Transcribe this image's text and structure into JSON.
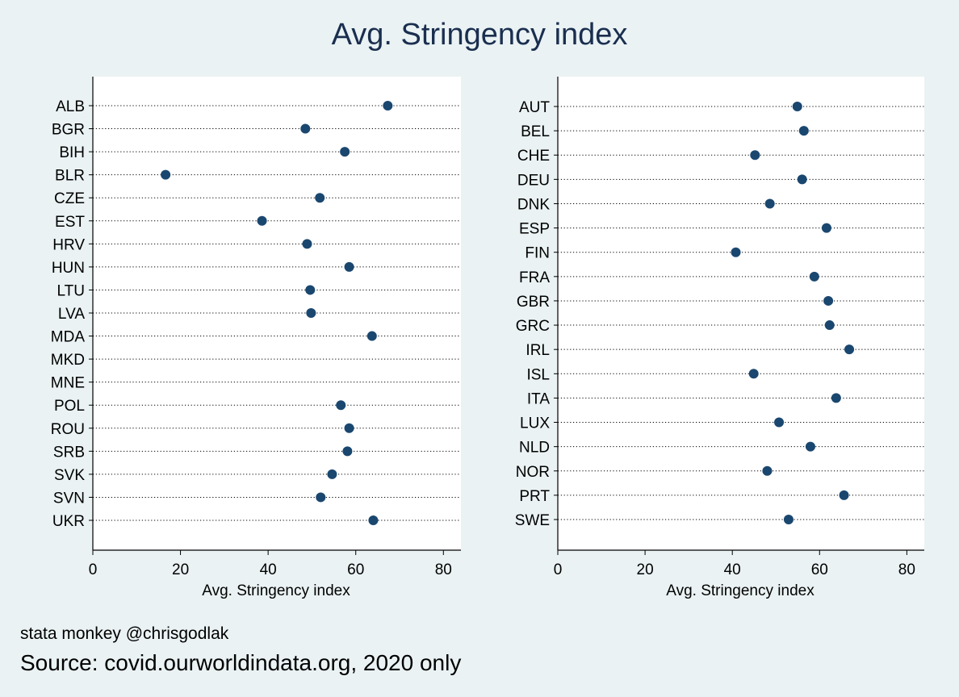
{
  "title": "Avg. Stringency index",
  "credit": "stata monkey @chrisgodlak",
  "source": "Source: covid.ourworldindata.org, 2020 only",
  "colors": {
    "background": "#eaf2f3",
    "plot_bg": "#ffffff",
    "marker": "#1a476f",
    "title": "#1a2e4f"
  },
  "chart_data": [
    {
      "type": "scatter",
      "orientation": "horizontal-dot",
      "xlabel": "Avg. Stringency index",
      "xlim": [
        0,
        84
      ],
      "xticks": [
        0,
        20,
        40,
        60,
        80
      ],
      "grid": "dotted horizontal lines per category",
      "categories": [
        "ALB",
        "BGR",
        "BIH",
        "BLR",
        "CZE",
        "EST",
        "HRV",
        "HUN",
        "LTU",
        "LVA",
        "MDA",
        "MKD",
        "MNE",
        "POL",
        "ROU",
        "SRB",
        "SVK",
        "SVN",
        "UKR"
      ],
      "values": [
        67.3,
        48.5,
        57.5,
        16.6,
        51.8,
        38.6,
        48.9,
        58.5,
        49.6,
        49.8,
        63.7,
        null,
        null,
        56.6,
        58.5,
        58.1,
        54.6,
        52.0,
        64.0
      ]
    },
    {
      "type": "scatter",
      "orientation": "horizontal-dot",
      "xlabel": "Avg. Stringency index",
      "xlim": [
        0,
        84
      ],
      "xticks": [
        0,
        20,
        40,
        60,
        80
      ],
      "grid": "dotted horizontal lines per category",
      "categories": [
        "AUT",
        "BEL",
        "CHE",
        "DEU",
        "DNK",
        "ESP",
        "FIN",
        "FRA",
        "GBR",
        "GRC",
        "IRL",
        "ISL",
        "ITA",
        "LUX",
        "NLD",
        "NOR",
        "PRT",
        "SWE"
      ],
      "values": [
        54.9,
        56.4,
        45.2,
        56.0,
        48.6,
        61.6,
        40.8,
        58.8,
        62.0,
        62.3,
        66.8,
        44.9,
        63.8,
        50.7,
        57.9,
        48.0,
        65.6,
        52.9
      ]
    }
  ]
}
